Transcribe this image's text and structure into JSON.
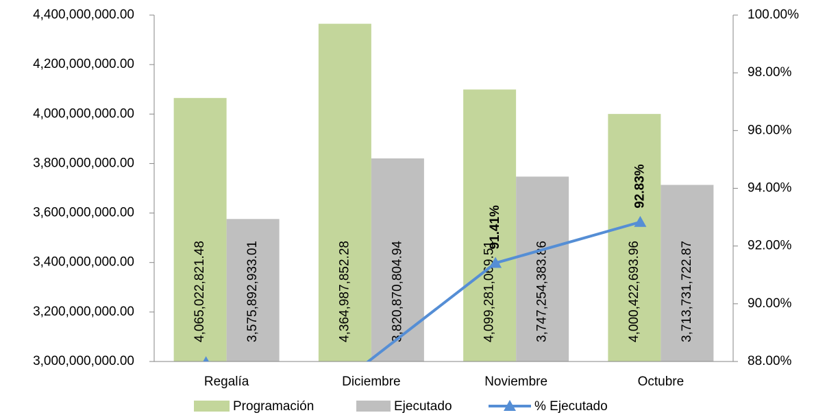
{
  "chart_data": {
    "type": "bar_line",
    "categories": [
      "Regalía",
      "Diciembre",
      "Noviembre",
      "Octubre"
    ],
    "series": [
      {
        "name": "Programación",
        "color": "#c3d69b",
        "type": "bar",
        "values": [
          4065022821.48,
          4364987852.28,
          4099281069.51,
          4000422693.96
        ],
        "value_labels": [
          "4,065,022,821.48",
          "4,364,987,852.28",
          "4,099,281,069.51",
          "4,000,422,693.96"
        ]
      },
      {
        "name": "Ejecutado",
        "color": "#bfbfbf",
        "type": "bar",
        "values": [
          3575892933.01,
          3820870804.94,
          3747254383.86,
          3713731722.87
        ],
        "value_labels": [
          "3,575,892,933.01",
          "3,820,870,804.94",
          "3,747,254,383.86",
          "3,713,731,722.87"
        ]
      },
      {
        "name": "% Ejecutado",
        "color": "#558ed5",
        "type": "line",
        "axis": "y2",
        "values": [
          87.97,
          87.53,
          91.41,
          92.83
        ],
        "value_labels": [
          null,
          null,
          "91.41%",
          "92.83%"
        ]
      }
    ],
    "ylim": [
      3000000000,
      4400000000
    ],
    "yticks": [
      {
        "value": 3000000000,
        "label": "3,000,000,000.00"
      },
      {
        "value": 3200000000,
        "label": "3,200,000,000.00"
      },
      {
        "value": 3400000000,
        "label": "3,400,000,000.00"
      },
      {
        "value": 3600000000,
        "label": "3,600,000,000.00"
      },
      {
        "value": 3800000000,
        "label": "3,800,000,000.00"
      },
      {
        "value": 4000000000,
        "label": "4,000,000,000.00"
      },
      {
        "value": 4200000000,
        "label": "4,200,000,000.00"
      },
      {
        "value": 4400000000,
        "label": "4,400,000,000.00"
      }
    ],
    "y2lim": [
      88,
      100
    ],
    "y2ticks": [
      {
        "value": 88,
        "label": "88.00%"
      },
      {
        "value": 90,
        "label": "90.00%"
      },
      {
        "value": 92,
        "label": "92.00%"
      },
      {
        "value": 94,
        "label": "94.00%"
      },
      {
        "value": 96,
        "label": "96.00%"
      },
      {
        "value": 98,
        "label": "98.00%"
      },
      {
        "value": 100,
        "label": "100.00%"
      }
    ],
    "legend": "bottom"
  }
}
